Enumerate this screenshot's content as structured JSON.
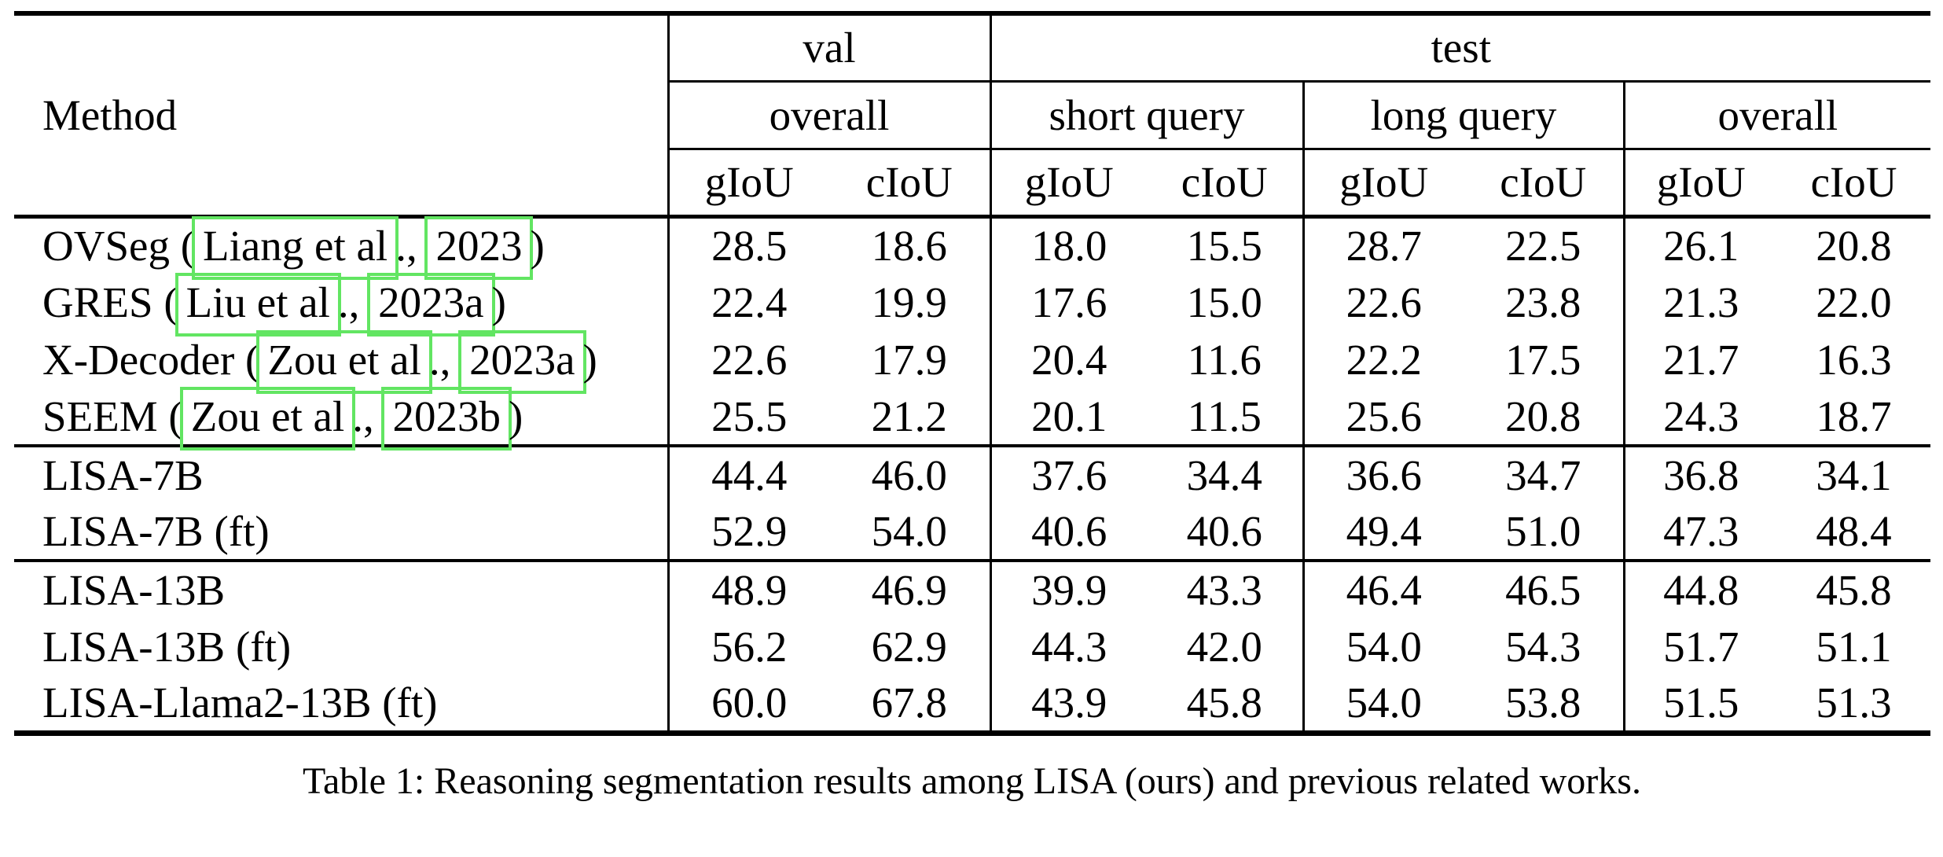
{
  "style": {
    "background_color": "#ffffff",
    "text_color": "#000000",
    "citation_box_color": "#62e562"
  },
  "caption": "Table 1: Reasoning segmentation results among LISA (ours) and previous related works.",
  "table": {
    "col_header": {
      "method": "Method",
      "split_val": "val",
      "split_test": "test",
      "val_groups": [
        "overall"
      ],
      "test_groups": [
        "short query",
        "long query",
        "overall"
      ],
      "metrics": [
        "gIoU",
        "cIoU",
        "gIoU",
        "cIoU",
        "gIoU",
        "cIoU",
        "gIoU",
        "cIoU"
      ]
    },
    "sections": [
      {
        "rows": [
          {
            "method": [
              {
                "t": "OVSeg ("
              },
              {
                "t": "Liang et al",
                "link": true
              },
              {
                "t": "., "
              },
              {
                "t": "2023",
                "link": true
              },
              {
                "t": ")"
              }
            ],
            "values": [
              "28.5",
              "18.6",
              "18.0",
              "15.5",
              "28.7",
              "22.5",
              "26.1",
              "20.8"
            ]
          },
          {
            "method": [
              {
                "t": "GRES ("
              },
              {
                "t": "Liu et al",
                "link": true
              },
              {
                "t": "., "
              },
              {
                "t": "2023a",
                "link": true
              },
              {
                "t": ")"
              }
            ],
            "values": [
              "22.4",
              "19.9",
              "17.6",
              "15.0",
              "22.6",
              "23.8",
              "21.3",
              "22.0"
            ]
          },
          {
            "method": [
              {
                "t": "X-Decoder ("
              },
              {
                "t": "Zou et al",
                "link": true
              },
              {
                "t": "., "
              },
              {
                "t": "2023a",
                "link": true
              },
              {
                "t": ")"
              }
            ],
            "values": [
              "22.6",
              "17.9",
              "20.4",
              "11.6",
              "22.2",
              "17.5",
              "21.7",
              "16.3"
            ]
          },
          {
            "method": [
              {
                "t": "SEEM ("
              },
              {
                "t": "Zou et al",
                "link": true
              },
              {
                "t": "., "
              },
              {
                "t": "2023b",
                "link": true
              },
              {
                "t": ")"
              }
            ],
            "values": [
              "25.5",
              "21.2",
              "20.1",
              "11.5",
              "25.6",
              "20.8",
              "24.3",
              "18.7"
            ]
          }
        ]
      },
      {
        "rows": [
          {
            "method": [
              {
                "t": "LISA-7B"
              }
            ],
            "values": [
              "44.4",
              "46.0",
              "37.6",
              "34.4",
              "36.6",
              "34.7",
              "36.8",
              "34.1"
            ]
          },
          {
            "method": [
              {
                "t": "LISA-7B (ft)"
              }
            ],
            "values": [
              "52.9",
              "54.0",
              "40.6",
              "40.6",
              "49.4",
              "51.0",
              "47.3",
              "48.4"
            ]
          }
        ]
      },
      {
        "rows": [
          {
            "method": [
              {
                "t": "LISA-13B"
              }
            ],
            "values": [
              "48.9",
              "46.9",
              "39.9",
              "43.3",
              "46.4",
              "46.5",
              "44.8",
              "45.8"
            ]
          },
          {
            "method": [
              {
                "t": "LISA-13B (ft)"
              }
            ],
            "values": [
              "56.2",
              "62.9",
              "44.3",
              "42.0",
              "54.0",
              "54.3",
              "51.7",
              "51.1"
            ]
          },
          {
            "method": [
              {
                "t": "LISA-Llama2-13B (ft)"
              }
            ],
            "values": [
              "60.0",
              "67.8",
              "43.9",
              "45.8",
              "54.0",
              "53.8",
              "51.5",
              "51.3"
            ]
          }
        ]
      }
    ]
  }
}
